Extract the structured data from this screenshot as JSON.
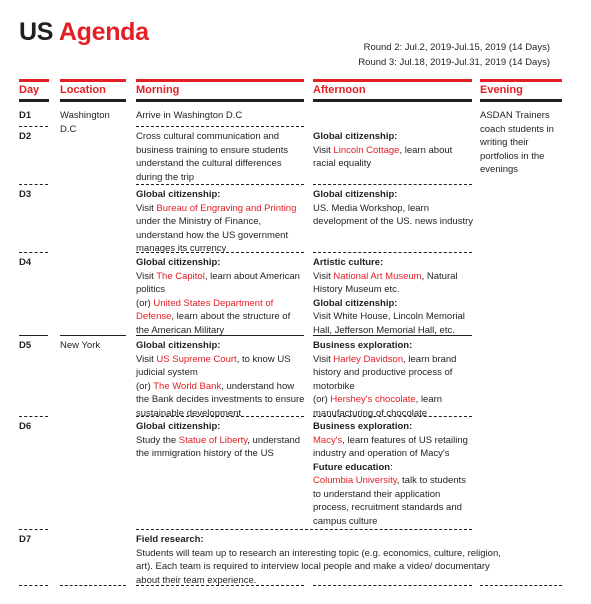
{
  "title": {
    "black": "US ",
    "red": "Agenda"
  },
  "rounds": [
    "Round 2: Jul.2, 2019-Jul.15, 2019 (14 Days)",
    "Round 3: Jul.18, 2019-Jul.31, 2019 (14 Days)"
  ],
  "headers": {
    "day": "Day",
    "location": "Location",
    "morning": "Morning",
    "afternoon": "Afternoon",
    "evening": "Evening"
  },
  "colors": {
    "accent": "#e31e24",
    "text": "#231f20"
  },
  "rows": {
    "d1": {
      "day": "D1",
      "location": "Washington D.C",
      "morning": "Arrive in Washington D.C"
    },
    "d2": {
      "day": "D2",
      "morning": "Cross cultural communication and business training to ensure students understand the cultural differences during the trip",
      "afternoon_title": "Global citizenship:",
      "afternoon_pre": "Visit ",
      "afternoon_link": "Lincoln Cottage",
      "afternoon_post": ", learn about racial equality"
    },
    "d3": {
      "day": "D3",
      "morning_title": "Global citizenship:",
      "morning_pre": "Visit ",
      "morning_link": "Bureau of Engraving and Printing",
      "morning_post": " under the Ministry of Finance, understand how the US government manages its currency",
      "afternoon_title": "Global citizenship:",
      "afternoon_text": "US. Media Workshop, learn development of the US. news industry"
    },
    "d4": {
      "day": "D4",
      "morning_title": "Global citizenship:",
      "morning_pre": "Visit ",
      "morning_link1": "The Capitol",
      "morning_mid": ", learn about American politics",
      "morning_or": "(or) ",
      "morning_link2": "United States Department of Defense",
      "morning_post": ", learn about the structure of the American Military",
      "afternoon_title1": "Artistic culture:",
      "afternoon_pre1": "Visit ",
      "afternoon_link1": "National Art Museum",
      "afternoon_post1": ", Natural History Museum etc.",
      "afternoon_title2": "Global citizenship:",
      "afternoon_text2": "Visit White House, Lincoln Memorial Hall, Jefferson Memorial Hall, etc."
    },
    "d5": {
      "day": "D5",
      "location": "New York",
      "morning_title": "Global citizenship:",
      "morning_pre": "Visit ",
      "morning_link1": "US Supreme Court",
      "morning_mid": ", to know US judicial system",
      "morning_or": "(or) ",
      "morning_link2": "The World Bank",
      "morning_post": ",  understand how the Bank decides investments to ensure sustainable development",
      "afternoon_title": "Business exploration:",
      "afternoon_pre": "Visit ",
      "afternoon_link1": "Harley Davidson",
      "afternoon_mid": ", learn brand history and productive process of motorbike",
      "afternoon_or": "(or) ",
      "afternoon_link2": "Hershey's chocolate",
      "afternoon_post": ", learn manufacturing of chocolate"
    },
    "d6": {
      "day": "D6",
      "morning_title": "Global citizenship:",
      "morning_pre": "Study the ",
      "morning_link": "Statue of Liberty",
      "morning_post": ", understand the immigration history of the US",
      "afternoon_title1": "Business exploration:",
      "afternoon_link1": "Macy's",
      "afternoon_post1": ", learn features of US retailing industry and operation of Macy's",
      "afternoon_title2": "Future education",
      "afternoon_colon2": ":",
      "afternoon_link2": "Columbia University",
      "afternoon_post2": ", talk to students to understand their application process, recruitment standards and campus culture"
    },
    "d7": {
      "day": "D7",
      "title": "Field research:",
      "text": "Students will team up to research an interesting topic (e.g. economics, culture, religion, art). Each team is required to interview local people and make a video/ documentary about their team experience."
    }
  },
  "evening_text": "ASDAN Trainers coach students in writing their portfolios in the evenings"
}
